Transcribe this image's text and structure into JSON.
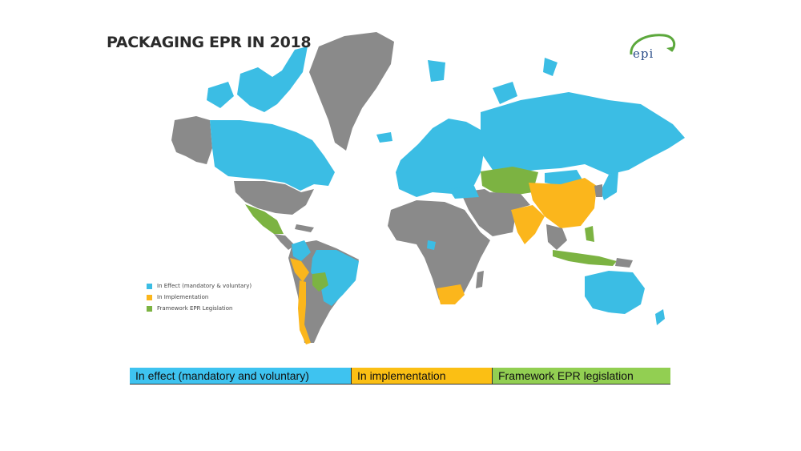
{
  "title": "PACKAGING EPR IN 2018",
  "logo_text": "epi",
  "colors": {
    "in_effect": "#3bbde4",
    "in_implementation": "#fbb61c",
    "framework": "#7cb342",
    "other": "#8a8a8a",
    "logo_arc": "#5ca83c"
  },
  "map_legend": [
    {
      "label": "In Effect (mandatory & voluntary)",
      "color": "#3bbde4"
    },
    {
      "label": "In Implementation",
      "color": "#fbb61c"
    },
    {
      "label": "Framework EPR Legislation",
      "color": "#7cb342"
    }
  ],
  "bottom_legend": [
    {
      "label": "In effect (mandatory and voluntary)",
      "color": "#3ec3f0"
    },
    {
      "label": "In implementation",
      "color": "#fbbf14"
    },
    {
      "label": "Framework EPR legislation",
      "color": "#92cf52"
    }
  ]
}
